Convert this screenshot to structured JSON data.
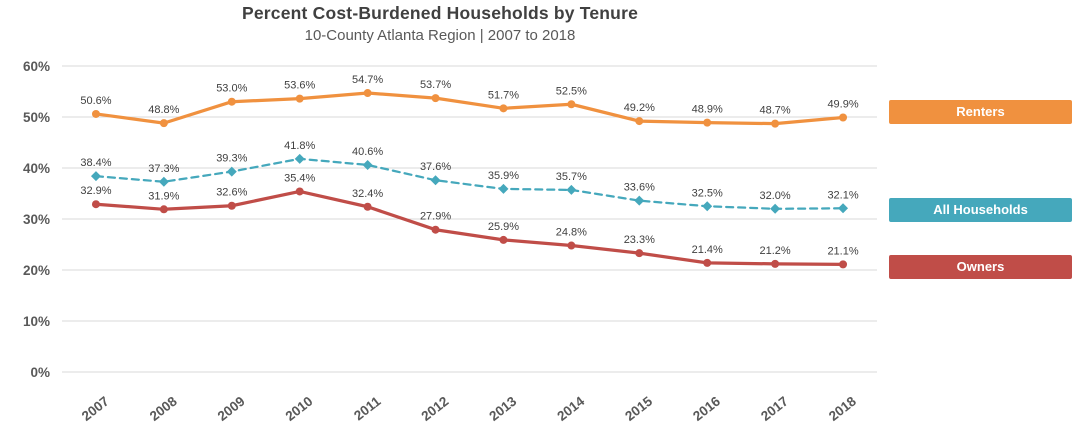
{
  "chart": {
    "title": "Percent Cost-Burdened Households by Tenure",
    "subtitle": "10-County Atlanta Region | 2007 to 2018"
  },
  "chart_data": {
    "type": "line",
    "title": "Percent Cost-Burdened Households by Tenure",
    "subtitle": "10-County Atlanta Region | 2007 to 2018",
    "categories": [
      "2007",
      "2008",
      "2009",
      "2010",
      "2011",
      "2012",
      "2013",
      "2014",
      "2015",
      "2016",
      "2017",
      "2018"
    ],
    "series": [
      {
        "name": "Renters",
        "color": "#F0913F",
        "line_style": "solid",
        "marker": "circle",
        "values": [
          50.6,
          48.8,
          53.0,
          53.6,
          54.7,
          53.7,
          51.7,
          52.5,
          49.2,
          48.9,
          48.7,
          49.9
        ]
      },
      {
        "name": "All Households",
        "color": "#45A8BC",
        "line_style": "dashed",
        "marker": "diamond",
        "values": [
          38.4,
          37.3,
          39.3,
          41.8,
          40.6,
          37.6,
          35.9,
          35.7,
          33.6,
          32.5,
          32.0,
          32.1
        ]
      },
      {
        "name": "Owners",
        "color": "#C04D48",
        "line_style": "solid",
        "marker": "circle",
        "values": [
          32.9,
          31.9,
          32.6,
          35.4,
          32.4,
          27.9,
          25.9,
          24.8,
          23.3,
          21.4,
          21.2,
          21.1
        ]
      }
    ],
    "data_label_format": "{value}%",
    "xlabel": "",
    "ylabel": "",
    "ylim": [
      0,
      60
    ],
    "ytick_step": 10,
    "ytick_labels": [
      "0%",
      "10%",
      "20%",
      "30%",
      "40%",
      "50%",
      "60%"
    ],
    "grid": true,
    "legend_position": "right",
    "data_labels": true,
    "colors": {
      "grid": "#d9d9d9",
      "axis_text": "#595959",
      "data_label_text": "#404040",
      "title_text": "#404040",
      "subtitle_text": "#595959",
      "legend_text": "#ffffff"
    }
  }
}
